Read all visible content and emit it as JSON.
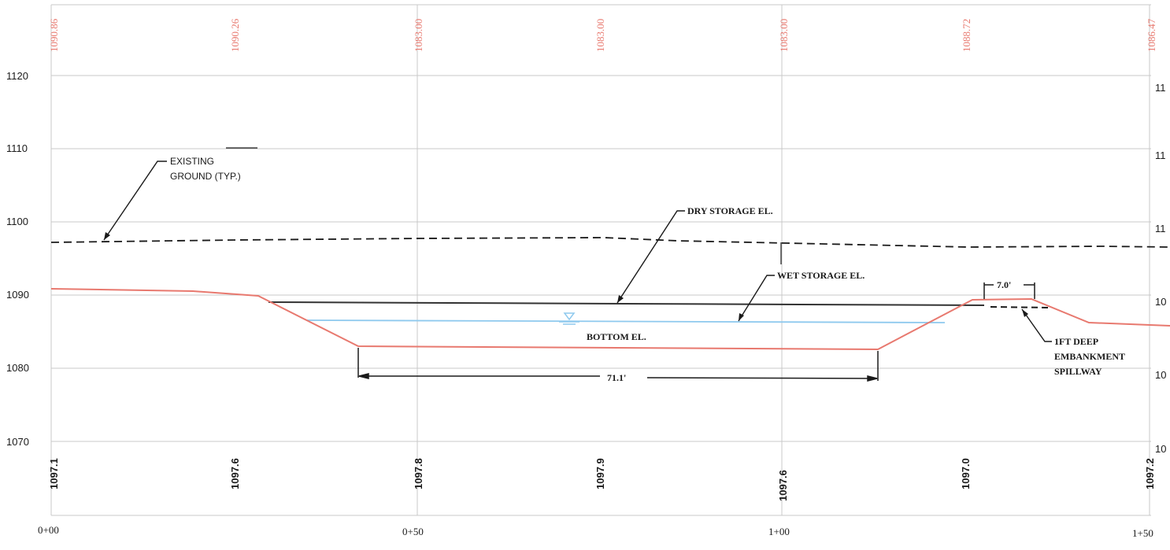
{
  "elevation_axis": {
    "ticks": [
      "1120",
      "1110",
      "1100",
      "1090",
      "1080",
      "1070"
    ],
    "right_ticks_visible": [
      "11",
      "11",
      "11",
      "10",
      "10",
      "10"
    ],
    "range": [
      1070,
      1125
    ]
  },
  "station_axis": {
    "labels": [
      "0+00",
      "0+50",
      "1+00",
      "1+50"
    ]
  },
  "proposed_elevations": [
    "1090.86",
    "1090.26",
    "1083.00",
    "1083.00",
    "1083.00",
    "1088.72",
    "1086.47"
  ],
  "existing_elevations": [
    "1097.1",
    "1097.6",
    "1097.8",
    "1097.9",
    "1097.6",
    "1097.0",
    "1097.2"
  ],
  "annotations": {
    "existing_ground_line1": "EXISTING",
    "existing_ground_line2": "GROUND (TYP.)",
    "dry_storage": "DRY STORAGE EL.",
    "wet_storage": "WET STORAGE EL.",
    "bottom": "BOTTOM EL.",
    "spillway_line1": "1FT DEEP",
    "spillway_line2": "EMBANKMENT",
    "spillway_line3": "SPILLWAY",
    "bottom_width": "71.1'",
    "crest_width": "7.0'"
  },
  "colors": {
    "proposed_profile": "#e8796f",
    "proposed_labels": "#e8796f",
    "water_line": "#8ec9ee",
    "grid": "#c8c8c8",
    "ink": "#1a1a1a"
  },
  "chart_data": {
    "type": "line",
    "title": "",
    "xlabel": "",
    "ylabel": "",
    "xlim": [
      0,
      150
    ],
    "ylim": [
      1070,
      1125
    ],
    "x": [
      0,
      25,
      50,
      75,
      100,
      125,
      150
    ],
    "series": [
      {
        "values": [
          1097.1,
          1097.6,
          1097.8,
          1097.9,
          1097.6,
          1097.0,
          1097.2
        ]
      },
      {
        "values": [
          1090.86,
          1090.26,
          1083.0,
          1083.0,
          1083.0,
          1088.72,
          1086.47
        ]
      }
    ],
    "storage_levels": {
      "dry": 1089,
      "wet": 1086.5,
      "bottom": 1083
    },
    "dimensions": {
      "bottom_width_ft": 71.1,
      "crest_width_ft": 7.0
    }
  }
}
